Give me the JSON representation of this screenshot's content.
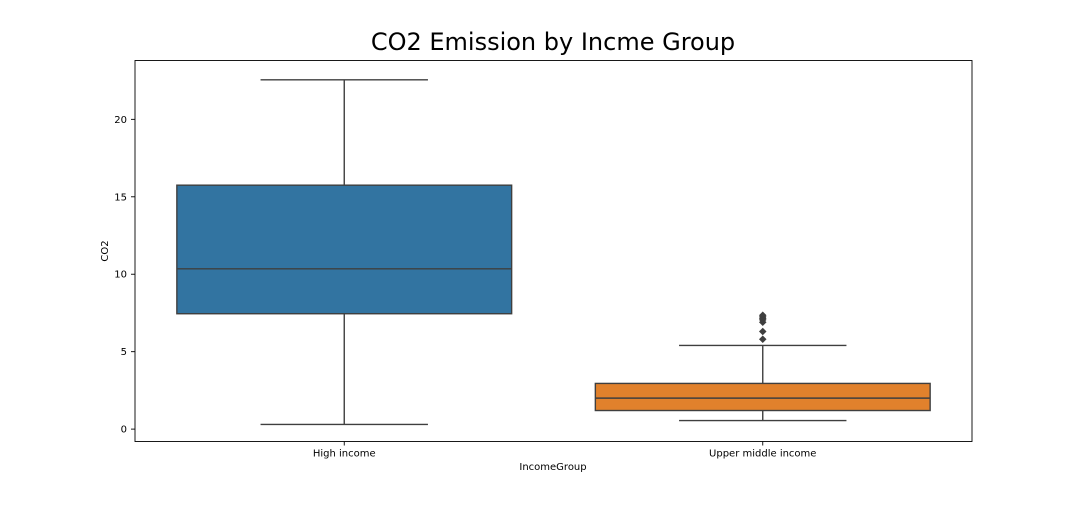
{
  "chart_data": {
    "type": "box",
    "title": "CO2 Emission by Incme Group",
    "xlabel": "IncomeGroup",
    "ylabel": "CO2",
    "ylim": [
      -0.8,
      23.8
    ],
    "yticks": [
      0,
      5,
      10,
      15,
      20
    ],
    "grid": false,
    "legend": "none",
    "categories": [
      "High income",
      "Upper middle income"
    ],
    "boxes": [
      {
        "category": "High income",
        "whisker_low": 0.3,
        "q1": 7.45,
        "median": 10.35,
        "q3": 15.75,
        "whisker_high": 22.55,
        "outliers": [],
        "color": "#3274a1"
      },
      {
        "category": "Upper middle income",
        "whisker_low": 0.55,
        "q1": 1.2,
        "median": 2.0,
        "q3": 2.95,
        "whisker_high": 5.4,
        "outliers": [
          5.8,
          6.3,
          6.9,
          7.05,
          7.15,
          7.25,
          7.35
        ],
        "color": "#e1812c"
      }
    ]
  }
}
